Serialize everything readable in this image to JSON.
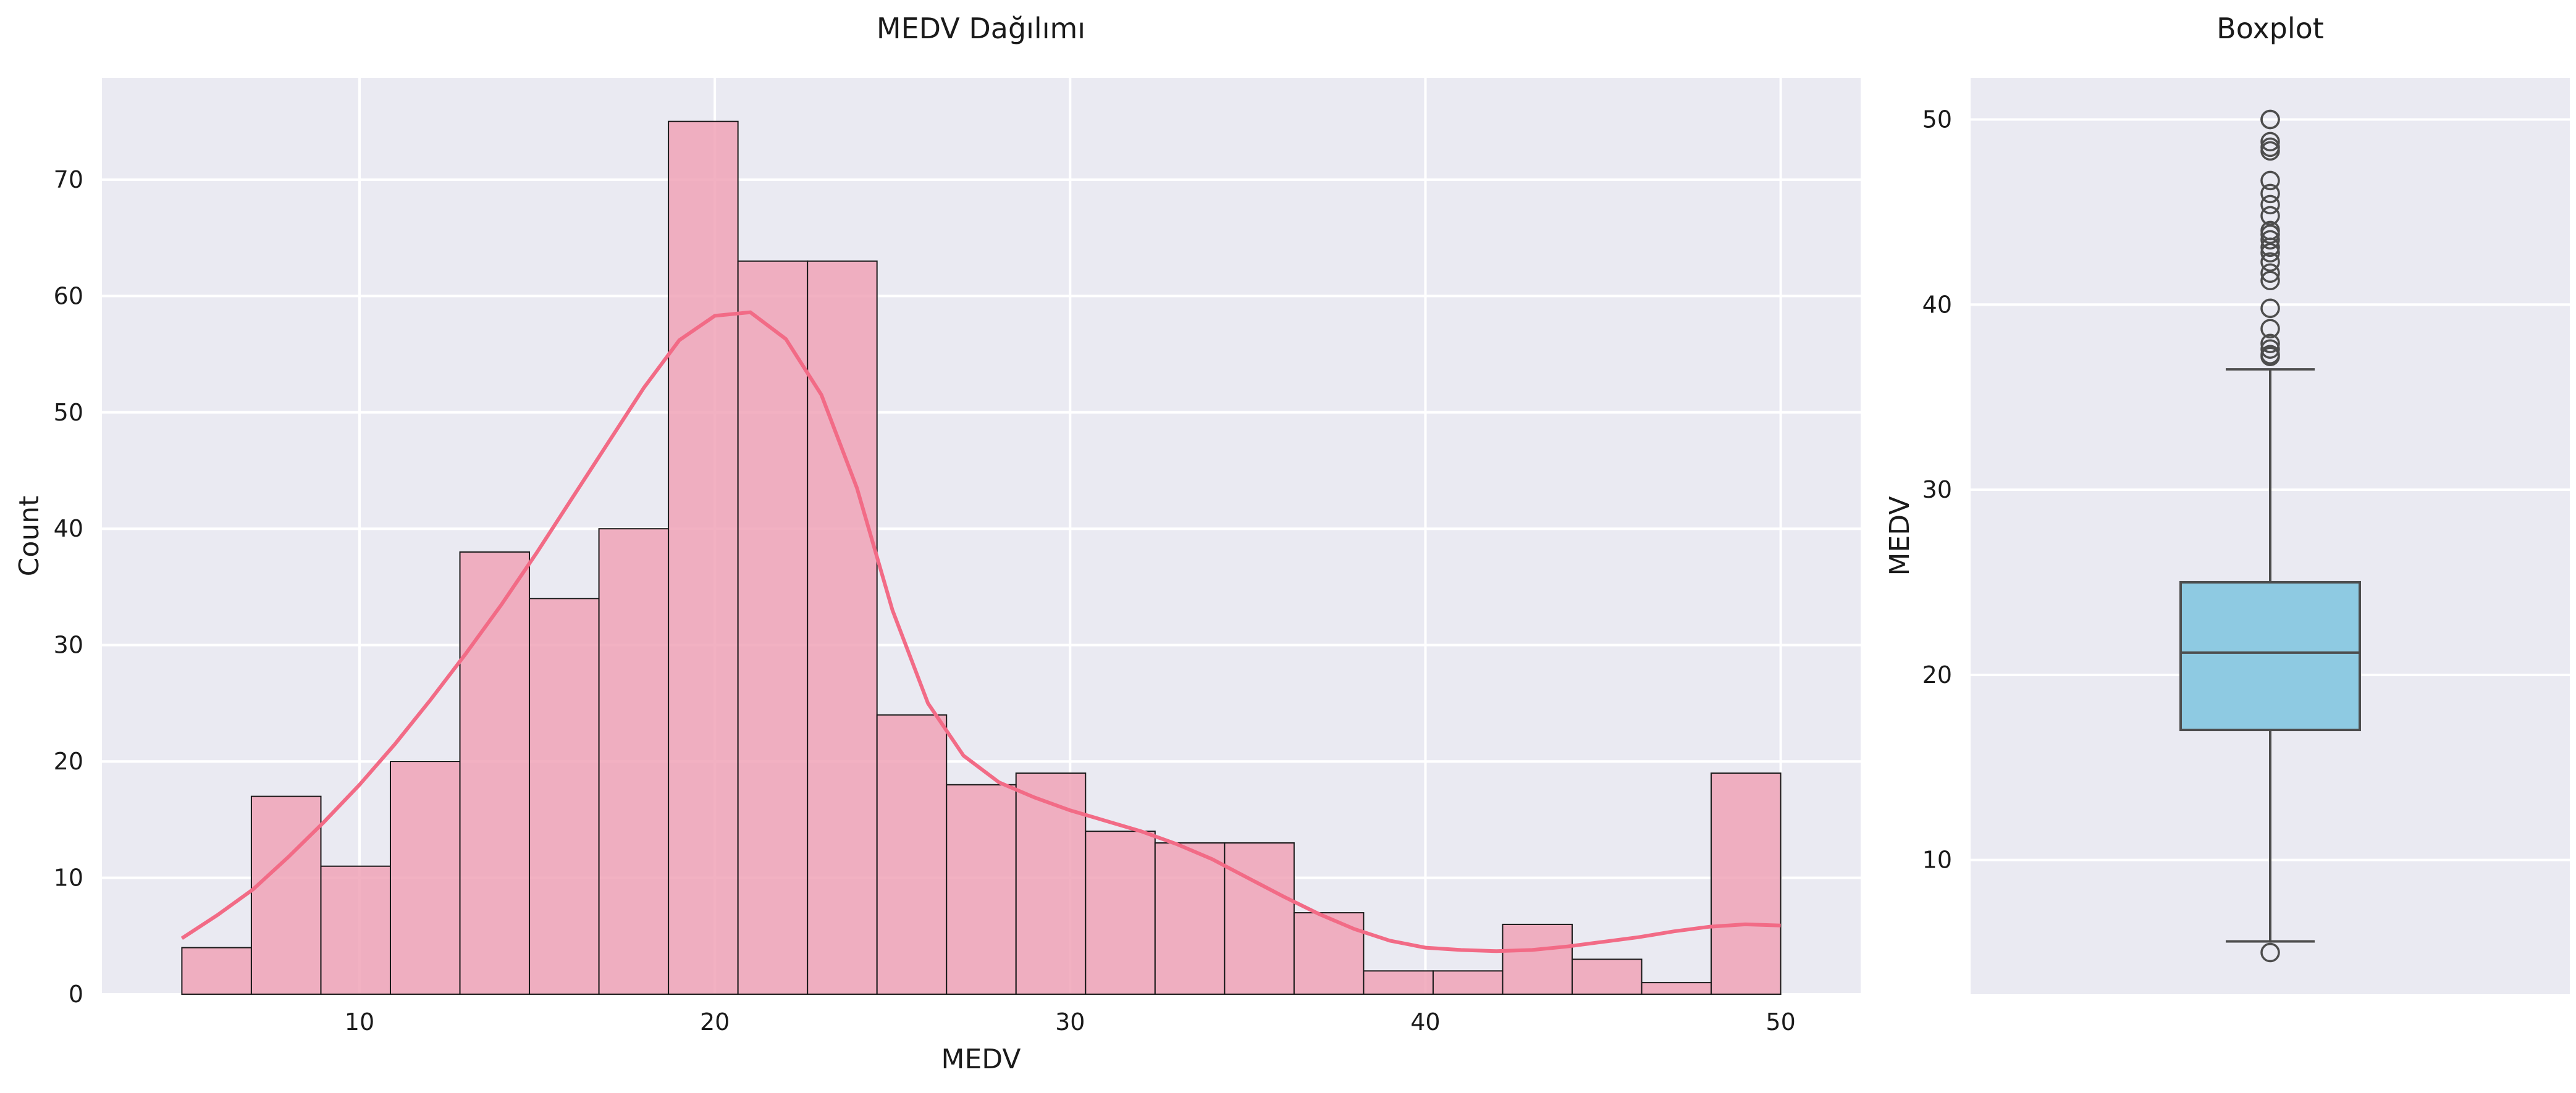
{
  "chart_data": [
    {
      "type": "bar",
      "title": "MEDV Dağılımı",
      "xlabel": "MEDV",
      "ylabel": "Count",
      "xlim": [
        2.75,
        52.25
      ],
      "ylim": [
        0,
        78.75
      ],
      "xticks": [
        10,
        20,
        30,
        40,
        50
      ],
      "yticks": [
        0,
        10,
        20,
        30,
        40,
        50,
        60,
        70
      ],
      "grid": true,
      "bin_start": 5.0,
      "bin_width": 1.9565,
      "values": [
        4,
        17,
        11,
        20,
        38,
        34,
        40,
        75,
        63,
        63,
        24,
        18,
        19,
        14,
        13,
        13,
        7,
        2,
        2,
        6,
        3,
        1,
        19
      ],
      "kde": {
        "x": [
          5,
          6,
          7,
          8,
          9,
          10,
          11,
          12,
          13,
          14,
          15,
          16,
          17,
          18,
          19,
          20,
          21,
          22,
          23,
          24,
          25,
          26,
          27,
          28,
          29,
          30,
          31,
          32,
          33,
          34,
          35,
          36,
          37,
          38,
          39,
          40,
          41,
          42,
          43,
          44,
          45,
          46,
          47,
          48,
          49,
          50
        ],
        "y": [
          4.8,
          6.8,
          9.0,
          11.8,
          14.8,
          18.0,
          21.5,
          25.3,
          29.3,
          33.5,
          38.0,
          42.7,
          47.4,
          52.1,
          56.2,
          58.3,
          58.6,
          56.3,
          51.5,
          43.5,
          33.0,
          25.0,
          20.5,
          18.2,
          16.9,
          15.8,
          14.9,
          14.0,
          12.9,
          11.6,
          10.0,
          8.4,
          6.9,
          5.6,
          4.6,
          4.0,
          3.8,
          3.7,
          3.8,
          4.1,
          4.5,
          4.9,
          5.4,
          5.8,
          6.0,
          5.9
        ]
      }
    },
    {
      "type": "box",
      "title": "Boxplot",
      "ylabel": "MEDV",
      "ylim": [
        2.75,
        52.25
      ],
      "yticks": [
        10,
        20,
        30,
        40,
        50
      ],
      "grid": true,
      "box": {
        "whisker_low": 5.6,
        "q1": 17.025,
        "median": 21.2,
        "q3": 25.0,
        "whisker_high": 36.5,
        "fliers": [
          5.0,
          37.2,
          37.3,
          37.6,
          37.9,
          38.7,
          39.8,
          41.3,
          41.7,
          42.3,
          42.8,
          43.1,
          43.5,
          43.8,
          44.0,
          44.8,
          45.4,
          46.0,
          46.7,
          48.3,
          48.5,
          48.8,
          50.0,
          50.0
        ]
      }
    }
  ]
}
